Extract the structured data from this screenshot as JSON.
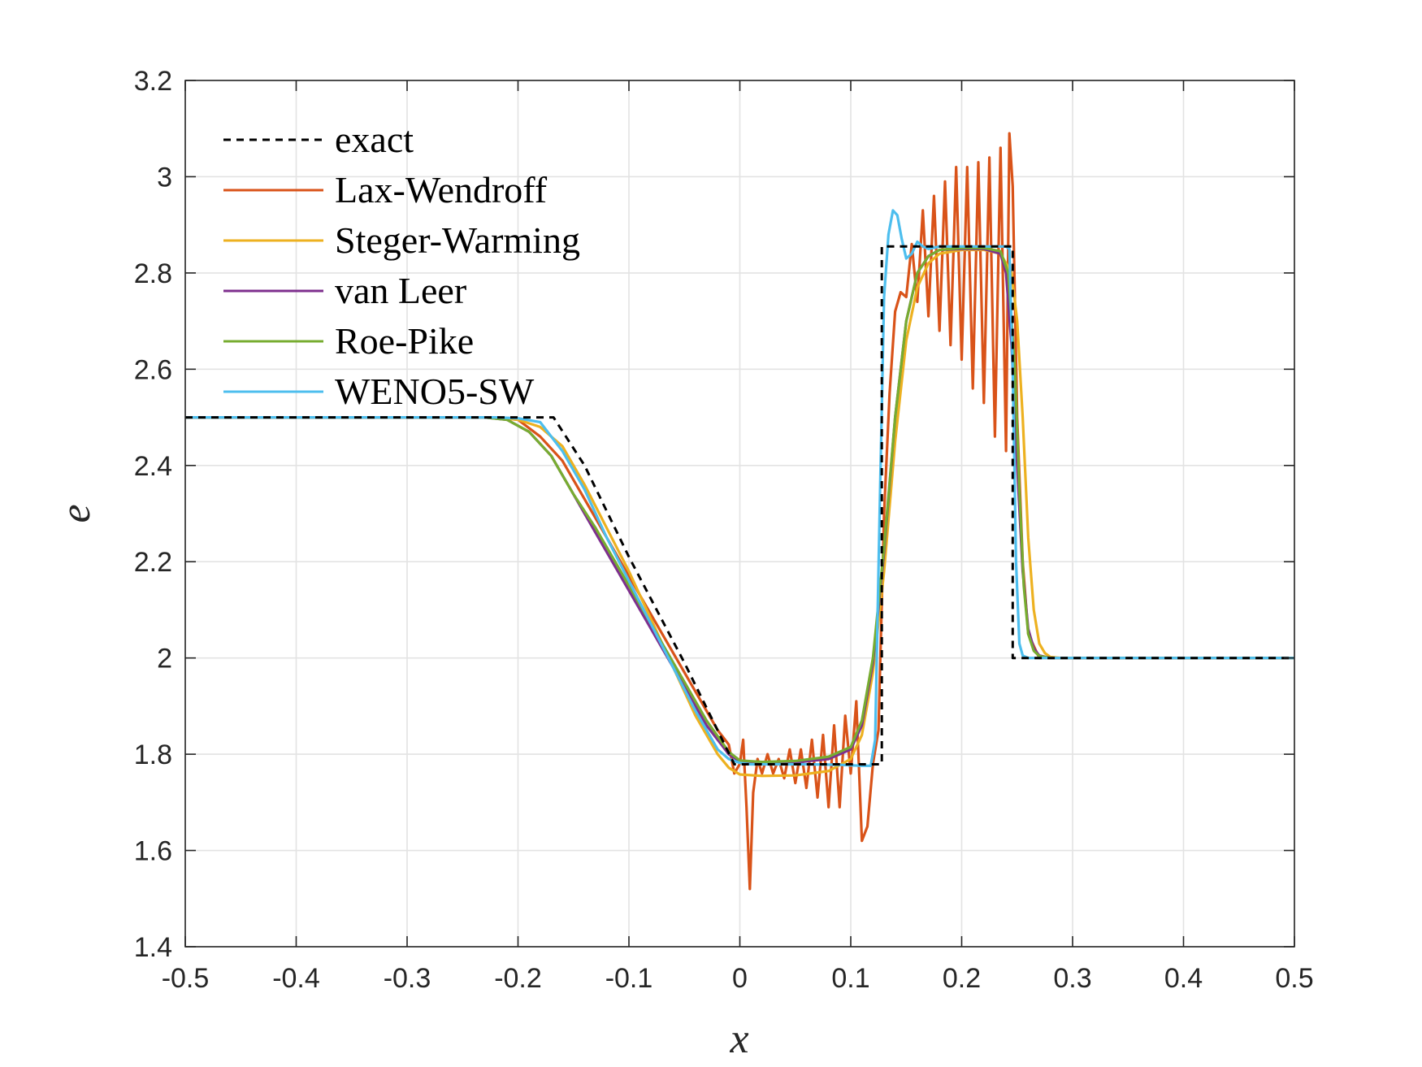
{
  "chart_data": {
    "type": "line",
    "title": "",
    "xlabel": "x",
    "ylabel": "e",
    "xlim": [
      -0.5,
      0.5
    ],
    "ylim": [
      1.4,
      3.2
    ],
    "xticks": [
      -0.5,
      -0.4,
      -0.3,
      -0.2,
      -0.1,
      0,
      0.1,
      0.2,
      0.3,
      0.4,
      0.5
    ],
    "xtick_labels": [
      "-0.5",
      "-0.4",
      "-0.3",
      "-0.2",
      "-0.1",
      "0",
      "0.1",
      "0.2",
      "0.3",
      "0.4",
      "0.5"
    ],
    "yticks": [
      1.4,
      1.6,
      1.8,
      2,
      2.2,
      2.4,
      2.6,
      2.8,
      3,
      3.2
    ],
    "ytick_labels": [
      "1.4",
      "1.6",
      "1.8",
      "2",
      "2.2",
      "2.4",
      "2.6",
      "2.8",
      "3",
      "3.2"
    ],
    "grid": true,
    "legend_position": "top-left",
    "series": [
      {
        "name": "exact",
        "color": "#000000",
        "dashed": true,
        "x": [
          -0.5,
          -0.168,
          -0.14,
          -0.1,
          -0.05,
          -0.005,
          0.128,
          0.128,
          0.246,
          0.246,
          0.5
        ],
        "y": [
          2.5,
          2.5,
          2.4,
          2.21,
          1.99,
          1.779,
          1.779,
          2.855,
          2.855,
          2.0,
          2.0
        ]
      },
      {
        "name": "Lax-Wendroff",
        "color": "#D95319",
        "dashed": false,
        "x": [
          -0.5,
          -0.22,
          -0.2,
          -0.18,
          -0.16,
          -0.14,
          -0.12,
          -0.1,
          -0.08,
          -0.06,
          -0.04,
          -0.02,
          -0.01,
          -0.005,
          0,
          0.003,
          0.006,
          0.009,
          0.012,
          0.016,
          0.02,
          0.025,
          0.03,
          0.035,
          0.04,
          0.045,
          0.05,
          0.055,
          0.06,
          0.065,
          0.07,
          0.075,
          0.08,
          0.085,
          0.09,
          0.095,
          0.1,
          0.105,
          0.11,
          0.115,
          0.12,
          0.125,
          0.13,
          0.135,
          0.14,
          0.145,
          0.15,
          0.155,
          0.16,
          0.165,
          0.17,
          0.175,
          0.18,
          0.185,
          0.19,
          0.195,
          0.2,
          0.205,
          0.21,
          0.215,
          0.22,
          0.225,
          0.23,
          0.235,
          0.24,
          0.243,
          0.246,
          0.25,
          0.255,
          0.26,
          0.27,
          0.28,
          0.3,
          0.5
        ],
        "y": [
          2.5,
          2.5,
          2.495,
          2.46,
          2.41,
          2.33,
          2.25,
          2.17,
          2.09,
          2.01,
          1.93,
          1.85,
          1.82,
          1.76,
          1.78,
          1.83,
          1.69,
          1.52,
          1.72,
          1.79,
          1.76,
          1.8,
          1.76,
          1.79,
          1.75,
          1.81,
          1.74,
          1.81,
          1.73,
          1.83,
          1.71,
          1.84,
          1.69,
          1.86,
          1.69,
          1.88,
          1.76,
          1.91,
          1.62,
          1.65,
          1.78,
          1.85,
          2.3,
          2.55,
          2.72,
          2.76,
          2.75,
          2.86,
          2.74,
          2.93,
          2.71,
          2.96,
          2.68,
          2.99,
          2.65,
          3.02,
          2.62,
          3.02,
          2.56,
          3.03,
          2.53,
          3.04,
          2.46,
          3.06,
          2.43,
          3.09,
          2.98,
          2.5,
          2.2,
          2.05,
          2.0,
          2.0,
          2.0,
          2.0
        ]
      },
      {
        "name": "Steger-Warming",
        "color": "#EDB120",
        "dashed": false,
        "x": [
          -0.5,
          -0.22,
          -0.2,
          -0.18,
          -0.16,
          -0.14,
          -0.12,
          -0.1,
          -0.08,
          -0.06,
          -0.04,
          -0.02,
          -0.01,
          0,
          0.02,
          0.05,
          0.08,
          0.1,
          0.11,
          0.12,
          0.13,
          0.14,
          0.15,
          0.16,
          0.17,
          0.18,
          0.2,
          0.22,
          0.235,
          0.245,
          0.25,
          0.255,
          0.26,
          0.265,
          0.27,
          0.275,
          0.28,
          0.29,
          0.5
        ],
        "y": [
          2.5,
          2.5,
          2.495,
          2.48,
          2.44,
          2.36,
          2.27,
          2.18,
          2.08,
          1.98,
          1.88,
          1.8,
          1.772,
          1.758,
          1.755,
          1.756,
          1.765,
          1.79,
          1.84,
          1.97,
          2.18,
          2.45,
          2.66,
          2.77,
          2.82,
          2.84,
          2.848,
          2.848,
          2.84,
          2.8,
          2.7,
          2.5,
          2.25,
          2.1,
          2.03,
          2.01,
          2.002,
          2.0,
          2.0
        ]
      },
      {
        "name": "van Leer",
        "color": "#7E2F8E",
        "dashed": false,
        "x": [
          -0.5,
          -0.23,
          -0.21,
          -0.19,
          -0.17,
          -0.15,
          -0.13,
          -0.11,
          -0.09,
          -0.07,
          -0.05,
          -0.03,
          -0.01,
          0,
          0.02,
          0.05,
          0.08,
          0.1,
          0.11,
          0.12,
          0.13,
          0.14,
          0.15,
          0.16,
          0.17,
          0.18,
          0.2,
          0.22,
          0.235,
          0.24,
          0.245,
          0.25,
          0.255,
          0.26,
          0.265,
          0.27,
          0.28,
          0.5
        ],
        "y": [
          2.5,
          2.5,
          2.495,
          2.47,
          2.42,
          2.34,
          2.26,
          2.18,
          2.1,
          2.02,
          1.94,
          1.86,
          1.8,
          1.785,
          1.782,
          1.783,
          1.79,
          1.81,
          1.86,
          1.99,
          2.22,
          2.5,
          2.7,
          2.8,
          2.835,
          2.848,
          2.85,
          2.85,
          2.84,
          2.8,
          2.65,
          2.4,
          2.18,
          2.06,
          2.02,
          2.005,
          2.0,
          2.0
        ]
      },
      {
        "name": "Roe-Pike",
        "color": "#77AC30",
        "dashed": false,
        "x": [
          -0.5,
          -0.23,
          -0.21,
          -0.19,
          -0.17,
          -0.15,
          -0.13,
          -0.11,
          -0.09,
          -0.07,
          -0.05,
          -0.03,
          -0.01,
          0,
          0.02,
          0.05,
          0.08,
          0.1,
          0.11,
          0.12,
          0.13,
          0.14,
          0.15,
          0.16,
          0.17,
          0.18,
          0.2,
          0.22,
          0.235,
          0.242,
          0.248,
          0.252,
          0.256,
          0.26,
          0.265,
          0.27,
          0.28,
          0.5
        ],
        "y": [
          2.5,
          2.5,
          2.495,
          2.47,
          2.42,
          2.34,
          2.27,
          2.19,
          2.11,
          2.03,
          1.95,
          1.87,
          1.805,
          1.787,
          1.784,
          1.786,
          1.795,
          1.815,
          1.87,
          2.0,
          2.23,
          2.5,
          2.7,
          2.8,
          2.835,
          2.848,
          2.852,
          2.852,
          2.845,
          2.8,
          2.6,
          2.35,
          2.15,
          2.05,
          2.015,
          2.004,
          2.0,
          2.0
        ]
      },
      {
        "name": "WENO5-SW",
        "color": "#4DBEEE",
        "dashed": false,
        "x": [
          -0.5,
          -0.22,
          -0.2,
          -0.18,
          -0.16,
          -0.14,
          -0.12,
          -0.1,
          -0.08,
          -0.06,
          -0.04,
          -0.02,
          -0.01,
          0,
          0.01,
          0.03,
          0.06,
          0.09,
          0.11,
          0.118,
          0.122,
          0.126,
          0.13,
          0.134,
          0.138,
          0.142,
          0.146,
          0.15,
          0.155,
          0.16,
          0.165,
          0.17,
          0.18,
          0.2,
          0.22,
          0.24,
          0.243,
          0.246,
          0.249,
          0.252,
          0.255,
          0.26,
          0.5
        ],
        "y": [
          2.5,
          2.5,
          2.498,
          2.49,
          2.43,
          2.35,
          2.25,
          2.16,
          2.07,
          1.98,
          1.89,
          1.81,
          1.79,
          1.782,
          1.779,
          1.779,
          1.779,
          1.778,
          1.776,
          1.776,
          1.83,
          2.3,
          2.75,
          2.88,
          2.93,
          2.92,
          2.87,
          2.83,
          2.84,
          2.865,
          2.855,
          2.85,
          2.855,
          2.855,
          2.855,
          2.855,
          2.85,
          2.6,
          2.2,
          2.03,
          2.005,
          2.0,
          2.0
        ]
      }
    ]
  }
}
